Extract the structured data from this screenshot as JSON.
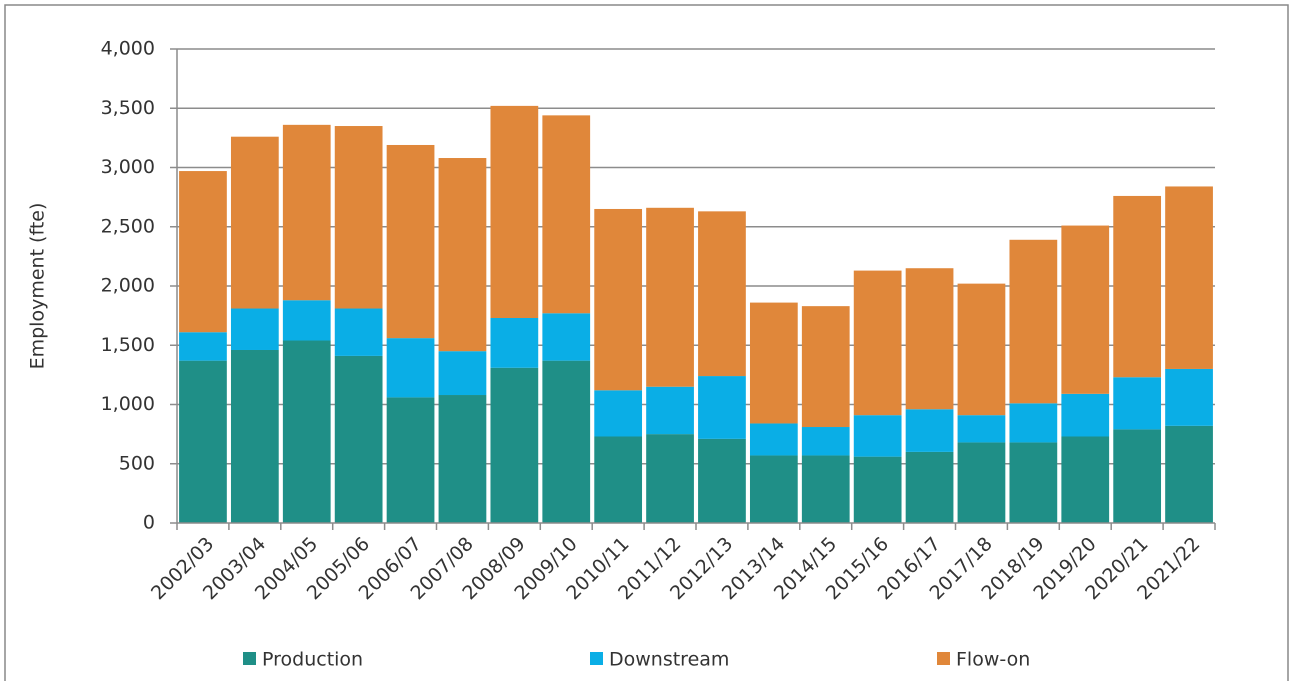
{
  "chart_data": {
    "type": "stacked_bar",
    "y_label": "Employment  (fte)",
    "categories": [
      "2002/03",
      "2003/04",
      "2004/05",
      "2005/06",
      "2006/07",
      "2007/08",
      "2008/09",
      "2009/10",
      "2010/11",
      "2011/12",
      "2012/13",
      "2013/14",
      "2014/15",
      "2015/16",
      "2016/17",
      "2017/18",
      "2018/19",
      "2019/20",
      "2020/21",
      "2021/22"
    ],
    "series": [
      {
        "name": "Production",
        "color": "#1f8f87",
        "values": [
          1370,
          1460,
          1540,
          1410,
          1060,
          1080,
          1310,
          1370,
          730,
          750,
          710,
          570,
          570,
          560,
          600,
          680,
          680,
          730,
          790,
          820
        ]
      },
      {
        "name": "Downstream",
        "color": "#0aaee6",
        "values": [
          240,
          350,
          340,
          400,
          500,
          370,
          420,
          400,
          390,
          400,
          530,
          270,
          240,
          350,
          360,
          230,
          330,
          360,
          440,
          480
        ]
      },
      {
        "name": "Flow-on",
        "color": "#e0873a",
        "values": [
          1360,
          1450,
          1480,
          1540,
          1630,
          1630,
          1790,
          1670,
          1530,
          1510,
          1390,
          1020,
          1020,
          1220,
          1190,
          1110,
          1380,
          1420,
          1530,
          1540
        ]
      }
    ],
    "ylim": [
      0,
      4000
    ],
    "yticks": [
      0,
      500,
      {
        "value": 1000,
        "label": "1,000"
      },
      {
        "value": 1500,
        "label": "1,500"
      },
      {
        "value": 2000,
        "label": "2,000"
      },
      {
        "value": 2500,
        "label": "2,500"
      },
      {
        "value": 3000,
        "label": "3,000"
      },
      {
        "value": 3500,
        "label": "3,500"
      },
      {
        "value": 4000,
        "label": "4,000"
      }
    ],
    "grid": true,
    "legend": "bottom"
  }
}
